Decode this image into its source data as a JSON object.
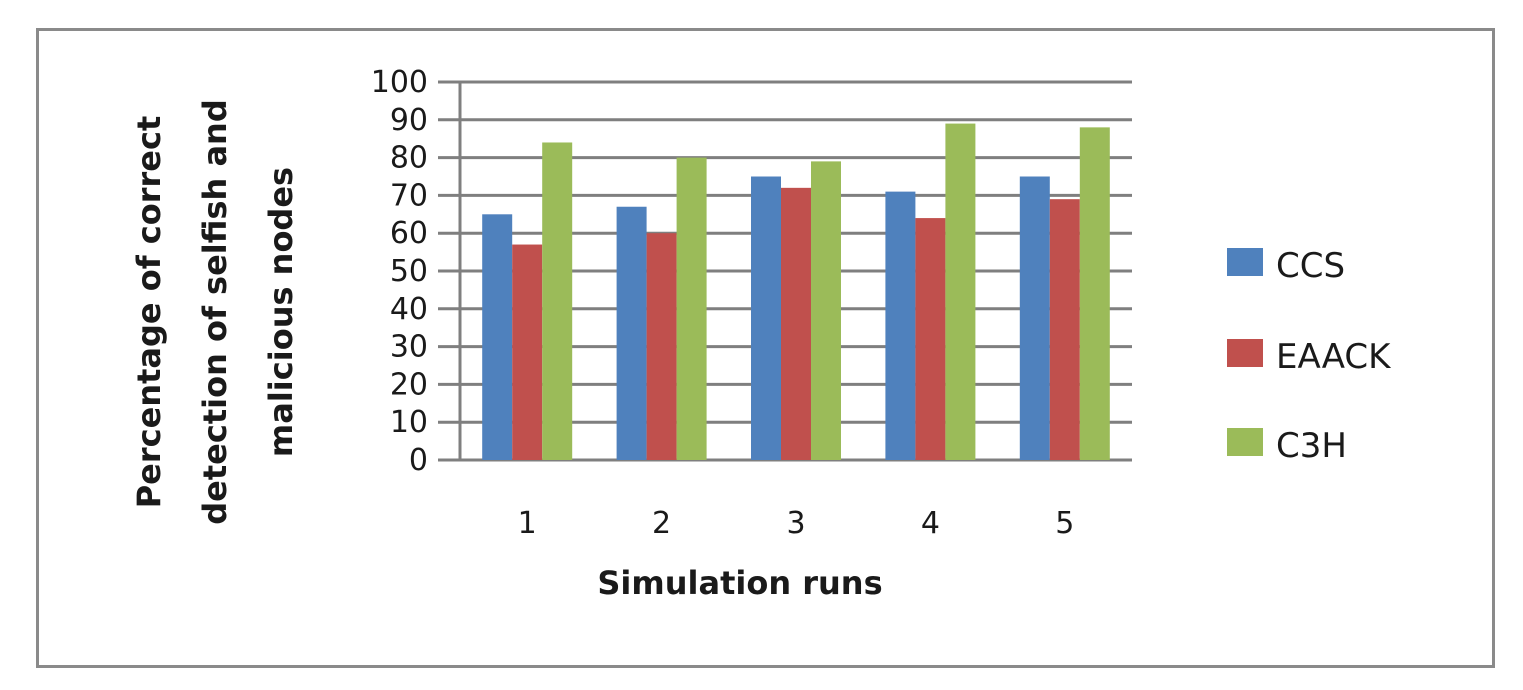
{
  "chart_data": {
    "type": "bar",
    "title": "",
    "xlabel": "Simulation runs",
    "ylabel_lines": [
      "Percentage of correct",
      "detection of selfish and",
      "malicious nodes"
    ],
    "categories": [
      "1",
      "2",
      "3",
      "4",
      "5"
    ],
    "y_ticks": [
      "0",
      "10",
      "20",
      "30",
      "40",
      "50",
      "60",
      "70",
      "80",
      "90",
      "100"
    ],
    "ylim": [
      0,
      100
    ],
    "grid": true,
    "legend_position": "right",
    "series": [
      {
        "name": "CCS",
        "color": "#4f81bd",
        "values": [
          65,
          67,
          75,
          71,
          75
        ]
      },
      {
        "name": "EAACK",
        "color": "#c0504d",
        "values": [
          57,
          60,
          72,
          64,
          69
        ]
      },
      {
        "name": "C3H",
        "color": "#9bbb59",
        "values": [
          84,
          80,
          79,
          89,
          88
        ]
      }
    ]
  }
}
